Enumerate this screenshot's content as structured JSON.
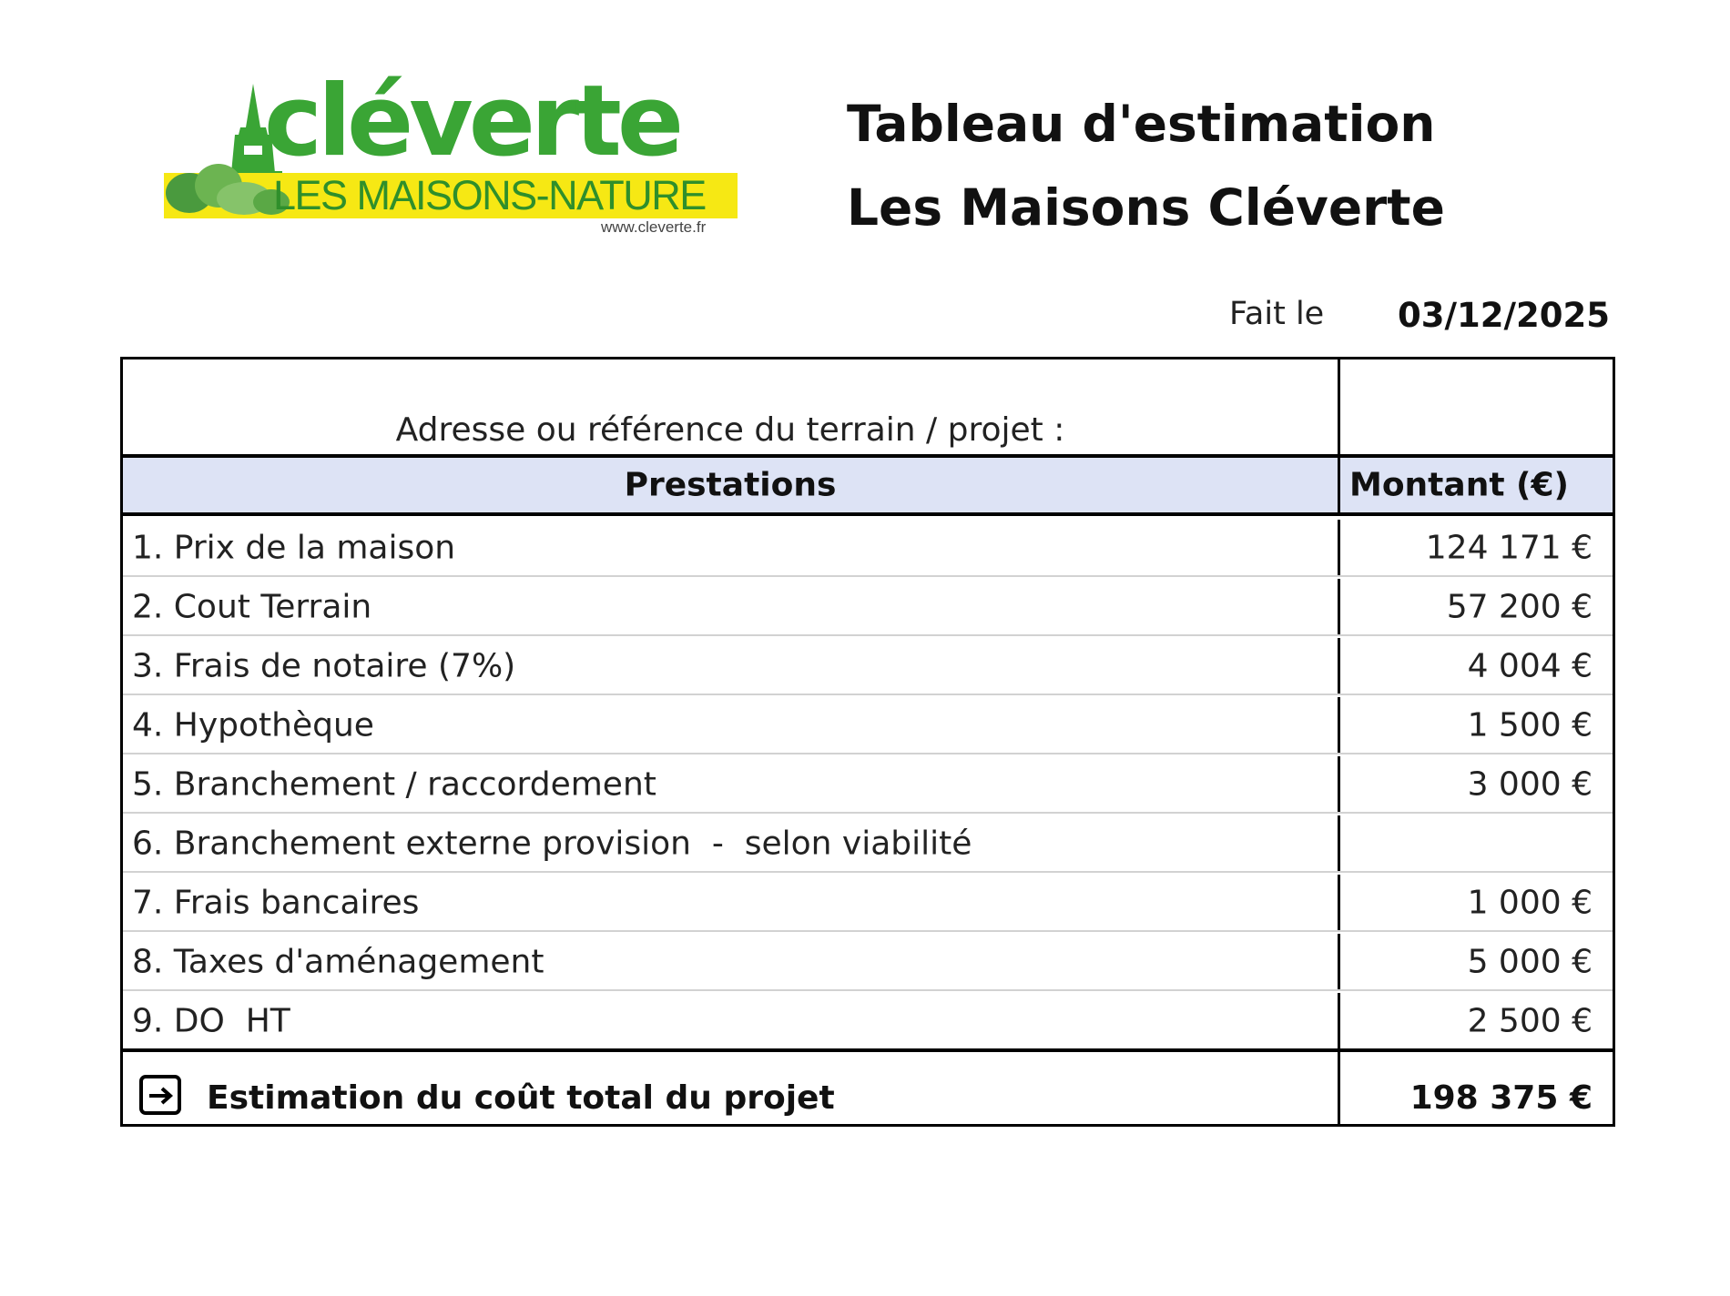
{
  "logo": {
    "wordmark": "cléverte",
    "tagline": "LES MAISONS-NATURE",
    "url": "www.cleverte.fr",
    "colors": {
      "green": "#3aa535",
      "yellow": "#f6e814"
    }
  },
  "title": {
    "line1": "Tableau d'estimation",
    "line2": "Les Maisons Cléverte"
  },
  "date": {
    "label": "Fait le",
    "value": "03/12/2025"
  },
  "table": {
    "address_label": "Adresse ou référence du terrain / projet :",
    "address_value": "",
    "header_color": "#dde3f5",
    "columns": [
      "Prestations",
      "Montant (€)"
    ],
    "rows": [
      {
        "label": "1. Prix de la maison",
        "amount": "124 171 €"
      },
      {
        "label": "2. Cout Terrain",
        "amount": "57 200 €"
      },
      {
        "label": "3. Frais de notaire (7%)",
        "amount": "4 004 €"
      },
      {
        "label": "4. Hypothèque",
        "amount": "1 500 €"
      },
      {
        "label": "5. Branchement / raccordement",
        "amount": "3 000 €"
      },
      {
        "label": "6. Branchement externe provision  -  selon viabilité",
        "amount": ""
      },
      {
        "label": "7. Frais bancaires",
        "amount": "1 000 €"
      },
      {
        "label": "8. Taxes d'aménagement",
        "amount": "5 000 €"
      },
      {
        "label": "9. DO  HT",
        "amount": "2 500 €"
      }
    ],
    "total": {
      "icon": "arrow-right-box-icon",
      "label": "Estimation du coût total du projet",
      "amount": "198 375 €"
    }
  }
}
